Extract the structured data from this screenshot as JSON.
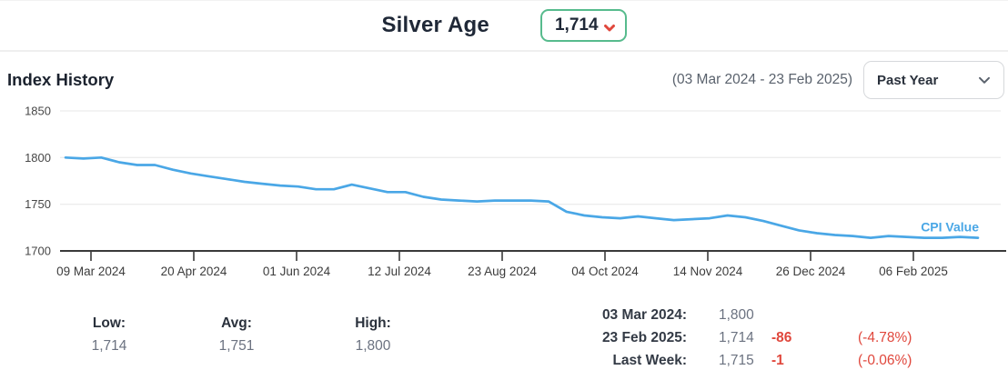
{
  "header": {
    "title": "Silver Age",
    "value": "1,714"
  },
  "section": {
    "title": "Index History",
    "date_range": "(03 Mar 2024 - 23 Feb 2025)",
    "range_value": "Past Year"
  },
  "chart_data": {
    "type": "line",
    "title": "Index History",
    "x_range": [
      "03 Mar 2024",
      "23 Feb 2025"
    ],
    "x_tick_labels": [
      "09 Mar 2024",
      "20 Apr 2024",
      "01 Jun 2024",
      "12 Jul 2024",
      "23 Aug 2024",
      "04 Oct 2024",
      "14 Nov 2024",
      "26 Dec 2024",
      "06 Feb 2025"
    ],
    "y_ticks": [
      1850,
      1800,
      1750,
      1700
    ],
    "ylim": [
      1700,
      1850
    ],
    "grid": true,
    "line_color": "#4aa7e6",
    "legend_position": "right-end",
    "series": [
      {
        "name": "CPI Value",
        "cadence": "weekly",
        "values": [
          1800,
          1799,
          1800,
          1795,
          1792,
          1792,
          1787,
          1783,
          1780,
          1777,
          1774,
          1772,
          1770,
          1769,
          1766,
          1766,
          1771,
          1767,
          1763,
          1763,
          1758,
          1755,
          1754,
          1753,
          1754,
          1754,
          1754,
          1753,
          1742,
          1738,
          1736,
          1735,
          1737,
          1735,
          1733,
          1734,
          1735,
          1738,
          1736,
          1732,
          1727,
          1722,
          1719,
          1717,
          1716,
          1714,
          1716,
          1715,
          1714,
          1714,
          1715,
          1714
        ]
      }
    ]
  },
  "stats": {
    "summary": [
      {
        "label": "Low:",
        "value": "1,714"
      },
      {
        "label": "Avg:",
        "value": "1,751"
      },
      {
        "label": "High:",
        "value": "1,800"
      }
    ],
    "rows": [
      {
        "label": "03 Mar 2024:",
        "value": "1,800",
        "change": "",
        "pct": ""
      },
      {
        "label": "23 Feb 2025:",
        "value": "1,714",
        "change": "-86",
        "pct": "(-4.78%)"
      },
      {
        "label": "Last Week:",
        "value": "1,715",
        "change": "-1",
        "pct": "(-0.06%)"
      }
    ]
  },
  "colors": {
    "accent_green": "#57bb8d",
    "negative_red": "#e0473c",
    "line_blue": "#4aa7e6",
    "text_dark": "#1f2837",
    "text_gray": "#6b7280"
  }
}
